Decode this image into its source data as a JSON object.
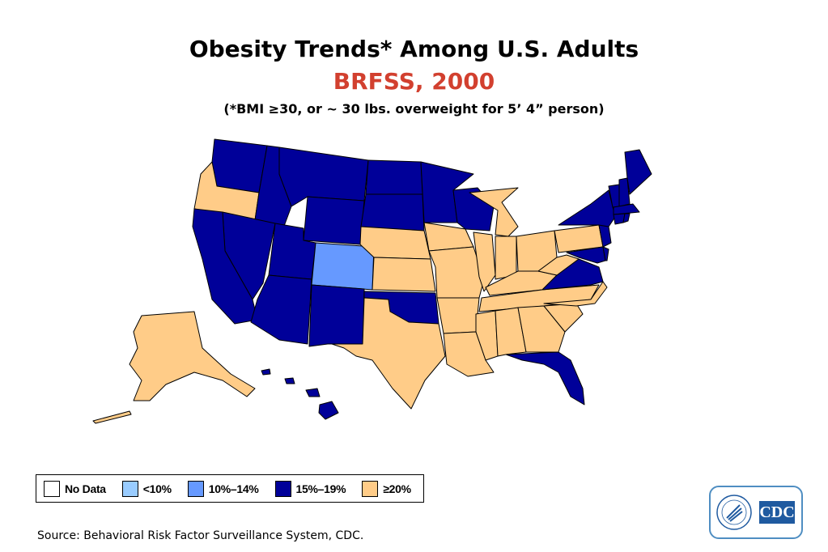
{
  "title": "Obesity Trends* Among U.S. Adults",
  "subtitle": "BRFSS, 2000",
  "note": "(*BMI ≥30, or ~ 30 lbs. overweight for 5’ 4” person)",
  "colors": {
    "no_data": "#ffffff",
    "lt10": "#99ccff",
    "10_14": "#6699ff",
    "15_19": "#000099",
    "ge20": "#ffcc88",
    "title_red": "#d2402f",
    "border": "#000000"
  },
  "legend": [
    {
      "label": "No Data",
      "color": "#ffffff"
    },
    {
      "label": "<10%",
      "color": "#99ccff"
    },
    {
      "label": "10%–14%",
      "color": "#6699ff"
    },
    {
      "label": "15%–19%",
      "color": "#000099"
    },
    {
      "label": "≥20%",
      "color": "#ffcc88"
    }
  ],
  "states": {
    "15-19": [
      "WA",
      "ID",
      "MT",
      "ND",
      "SD",
      "MN",
      "WI",
      "WY",
      "NV",
      "UT",
      "CA",
      "AZ",
      "NM",
      "OK",
      "FL",
      "VA",
      "MD",
      "DE",
      "NJ",
      "NY",
      "CT",
      "RI",
      "MA",
      "VT",
      "NH",
      "ME",
      "AK-none",
      "HI"
    ],
    "10-14": [
      "CO"
    ],
    "ge20": [
      "OR",
      "NE",
      "KS",
      "IA",
      "MO",
      "IL",
      "IN",
      "MI",
      "OH",
      "PA",
      "WV",
      "KY",
      "TN",
      "NC",
      "SC",
      "GA",
      "AL",
      "MS",
      "AR",
      "LA",
      "TX",
      "AK"
    ]
  },
  "source": "Source: Behavioral Risk Factor Surveillance System, CDC.",
  "logo": {
    "text": "CDC",
    "icon": "hhs-eagle-seal-icon"
  }
}
